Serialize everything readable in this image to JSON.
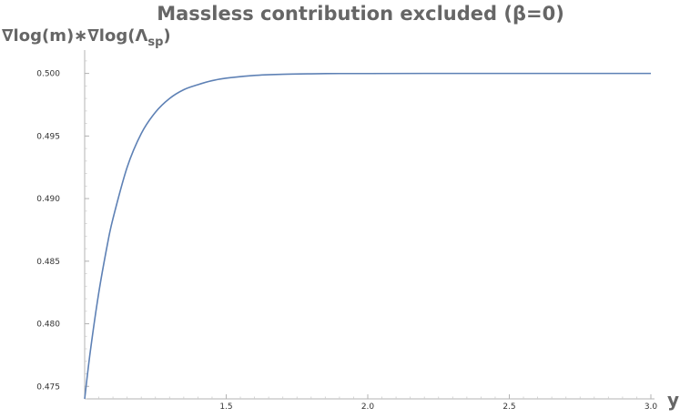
{
  "chart_data": {
    "type": "line",
    "title": "Massless contribution excluded (β=0)",
    "ylabel": "∇log(m)∗∇log(Λsp)",
    "ylabel_main": "∇log(m)∗∇log(Λ",
    "ylabel_sub": "sp",
    "ylabel_close": ")",
    "xlabel": "y",
    "xlim": [
      1.0,
      3.0
    ],
    "ylim": [
      0.474,
      0.5015
    ],
    "x_ticks": [
      1.5,
      2.0,
      2.5,
      3.0
    ],
    "x_tick_labels": [
      "1.5",
      "2.0",
      "2.5",
      "3.0"
    ],
    "y_ticks": [
      0.475,
      0.48,
      0.485,
      0.49,
      0.495,
      0.5
    ],
    "y_tick_labels": [
      "0.475",
      "0.480",
      "0.485",
      "0.490",
      "0.495",
      "0.500"
    ],
    "grid": false,
    "legend": "none",
    "color": "#5e81b5",
    "series": [
      {
        "x": [
          1.0,
          1.02,
          1.05,
          1.08,
          1.1,
          1.15,
          1.2,
          1.25,
          1.3,
          1.35,
          1.4,
          1.45,
          1.5,
          1.6,
          1.7,
          1.8,
          1.9,
          2.0,
          2.2,
          2.5,
          2.8,
          3.0
        ],
        "values": [
          0.474,
          0.4778,
          0.4825,
          0.4863,
          0.4884,
          0.4925,
          0.4952,
          0.4969,
          0.498,
          0.4987,
          0.4991,
          0.49942,
          0.49962,
          0.49984,
          0.49993,
          0.49997,
          0.49999,
          0.49999,
          0.5,
          0.5,
          0.5,
          0.5
        ]
      }
    ]
  }
}
